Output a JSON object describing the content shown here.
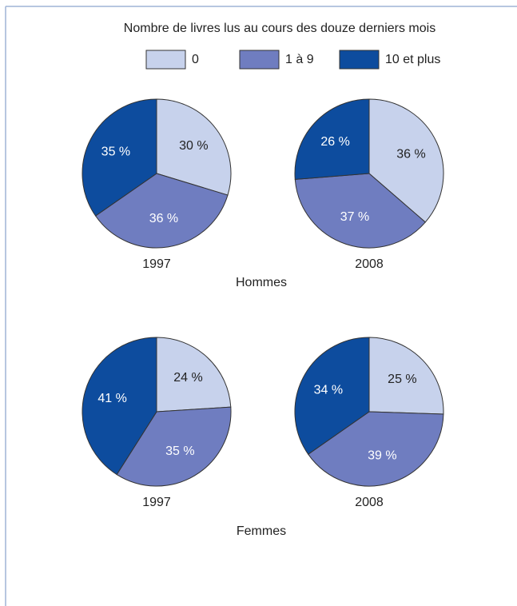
{
  "legend": {
    "title": "Nombre de livres lus au cours des douze derniers mois",
    "items": [
      "0",
      "1 à 9",
      "10 et plus"
    ],
    "colors": [
      "#c7d2ec",
      "#6f7dc0",
      "#0d4c9e"
    ]
  },
  "groups": [
    "Hommes",
    "Femmes"
  ],
  "chart_data": [
    {
      "type": "pie",
      "title": "1997",
      "values": [
        30,
        36,
        35
      ],
      "value_labels": [
        "30 %",
        "36 %",
        "35 %"
      ]
    },
    {
      "type": "pie",
      "title": "2008",
      "values": [
        36,
        37,
        26
      ],
      "value_labels": [
        "36 %",
        "37 %",
        "26 %"
      ]
    },
    {
      "type": "pie",
      "title": "1997",
      "values": [
        24,
        35,
        41
      ],
      "value_labels": [
        "24 %",
        "35 %",
        "41 %"
      ]
    },
    {
      "type": "pie",
      "title": "2008",
      "values": [
        25,
        39,
        34
      ],
      "value_labels": [
        "25 %",
        "39 %",
        "34 %"
      ]
    }
  ]
}
